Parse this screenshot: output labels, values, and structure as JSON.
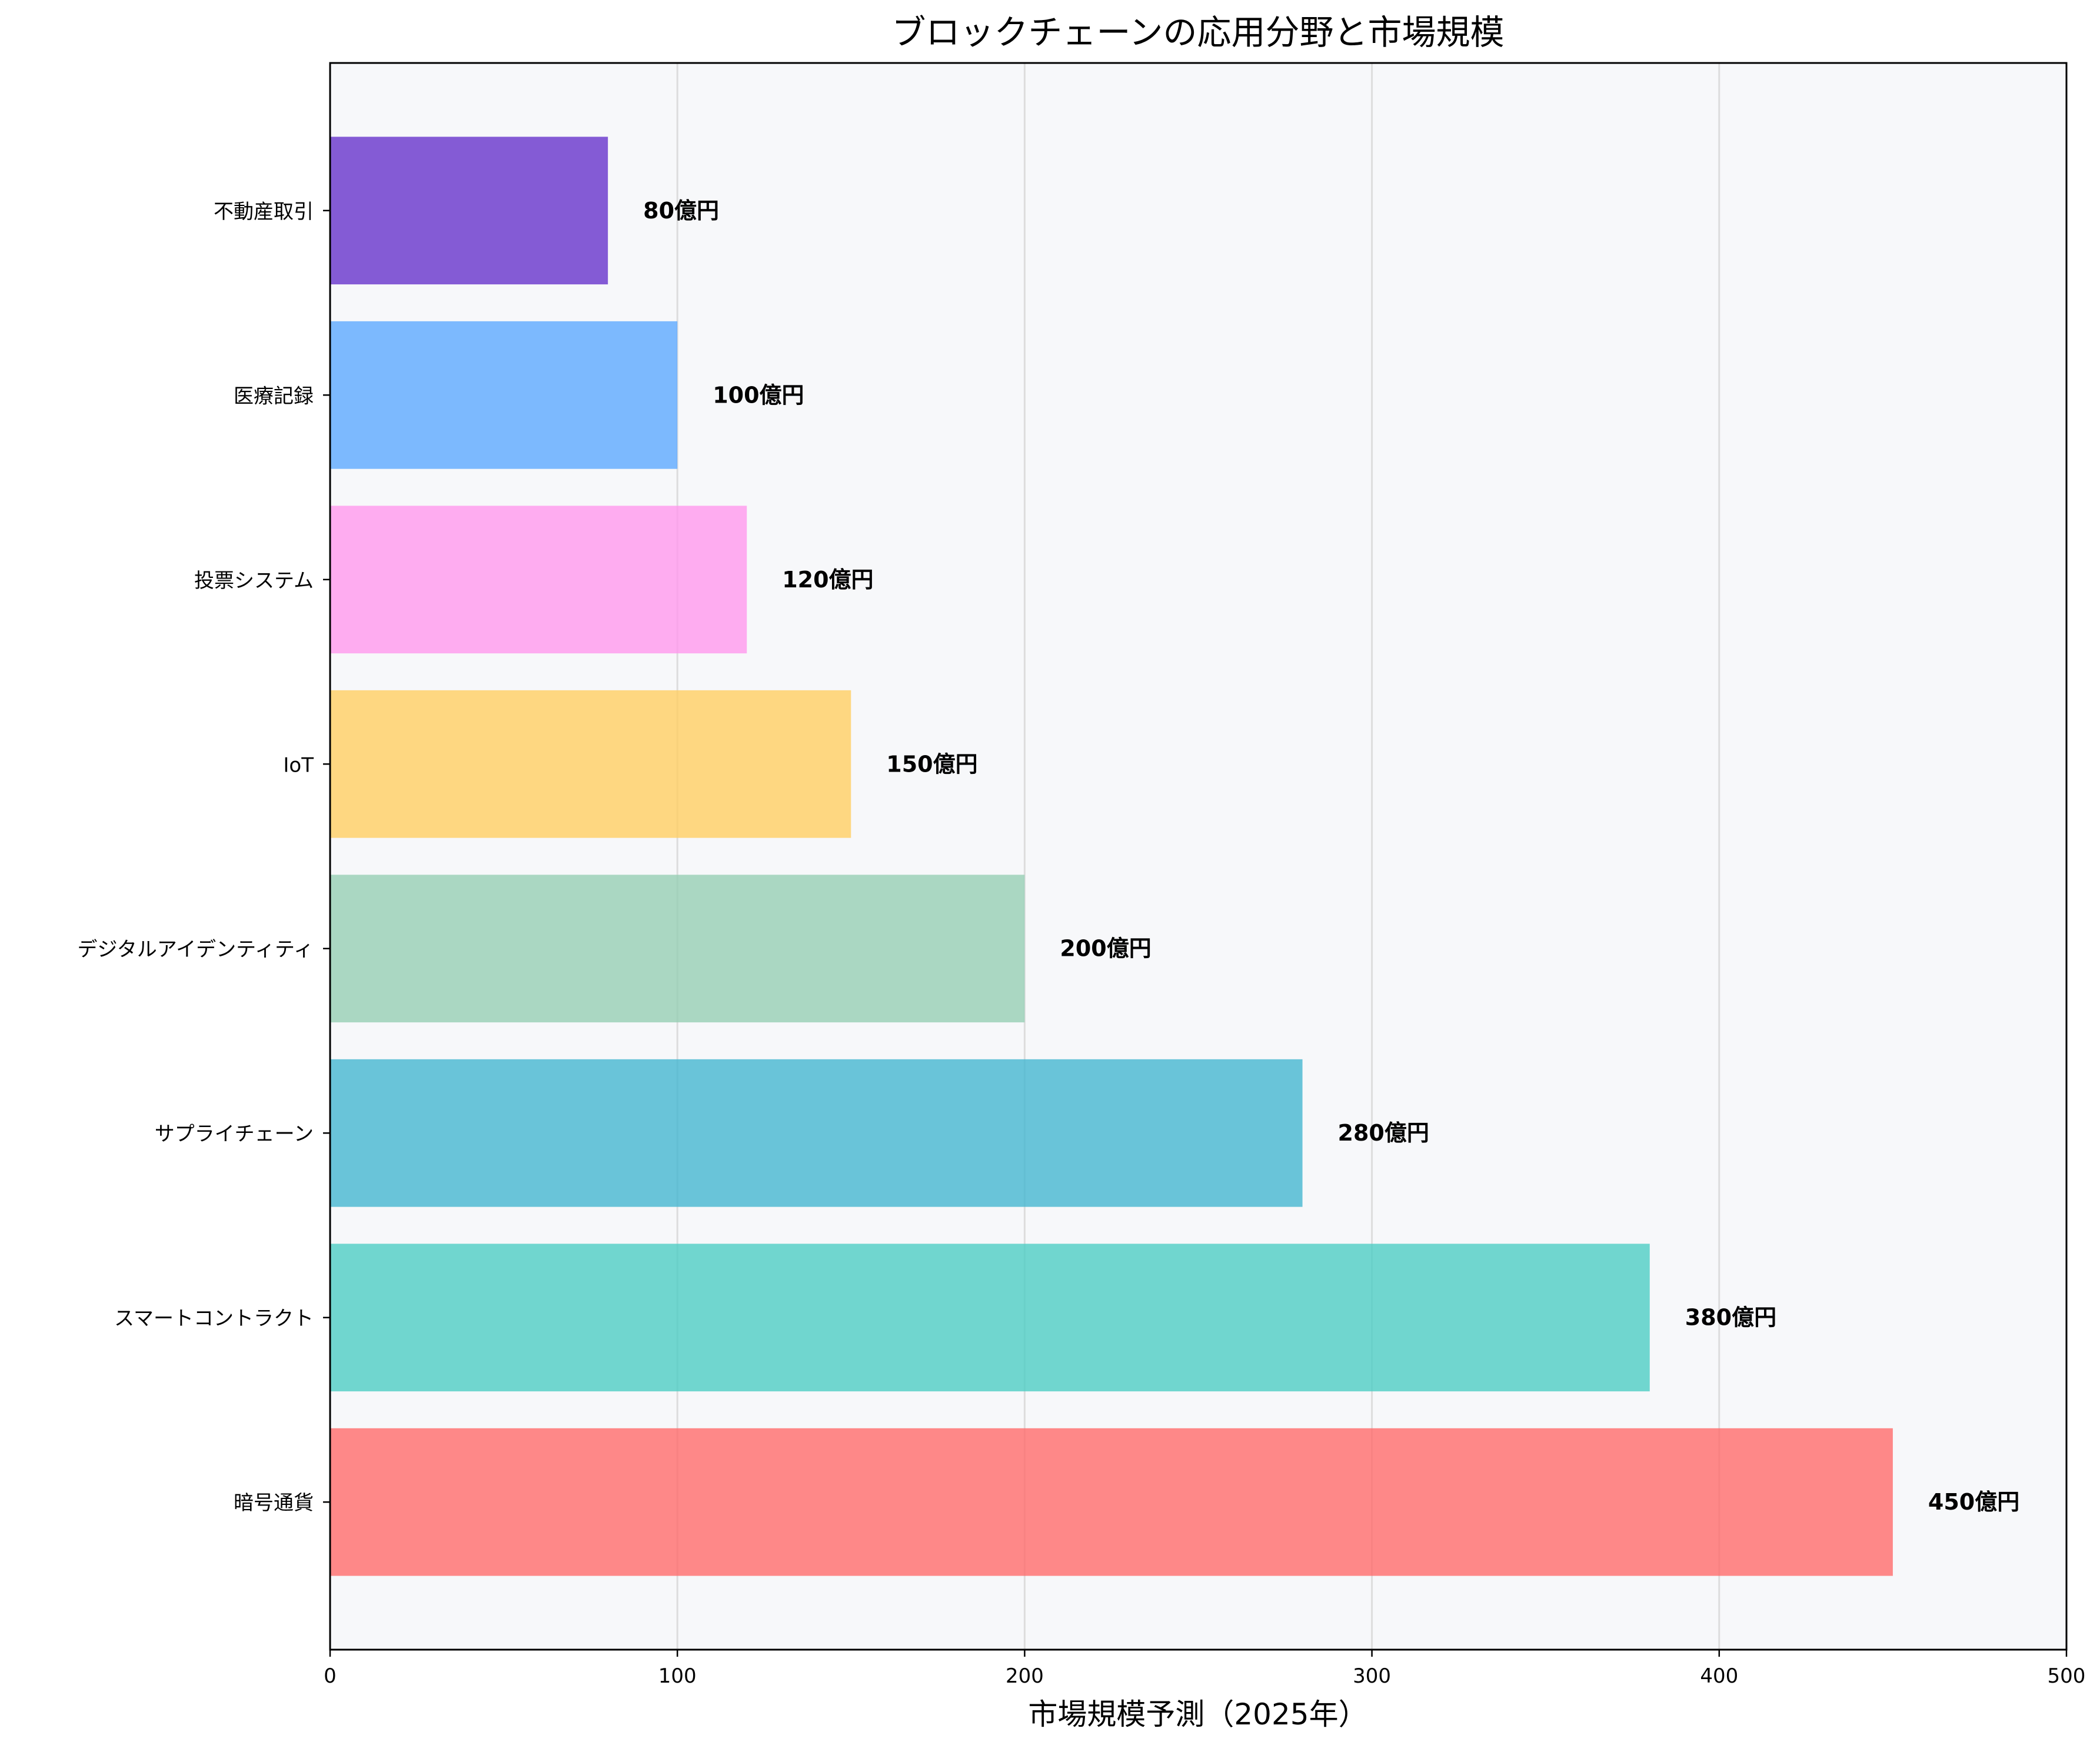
{
  "chart_data": {
    "type": "bar",
    "orientation": "horizontal",
    "title": "ブロックチェーンの応用分野と市場規模",
    "xlabel": "市場規模予測（2025年）",
    "ylabel": "",
    "xlim": [
      0,
      500
    ],
    "x_ticks": [
      "0",
      "100",
      "200",
      "300",
      "400",
      "500"
    ],
    "grid": "vertical",
    "categories": [
      "暗号通貨",
      "スマートコントラクト",
      "サプライチェーン",
      "デジタルアイデンティティ",
      "IoT",
      "投票システム",
      "医療記録",
      "不動産取引"
    ],
    "values": [
      450,
      380,
      280,
      200,
      150,
      120,
      100,
      80
    ],
    "data_labels": [
      "450億円",
      "380億円",
      "280億円",
      "200億円",
      "150億円",
      "120億円",
      "100億円",
      "80億円"
    ],
    "colors": [
      "#FF6B6B",
      "#4ECDC4",
      "#45B7D1",
      "#96CEB4",
      "#FFCE63",
      "#FF99EE",
      "#5DA9FF",
      "#6633CC"
    ],
    "background": "#F7F8FA"
  }
}
